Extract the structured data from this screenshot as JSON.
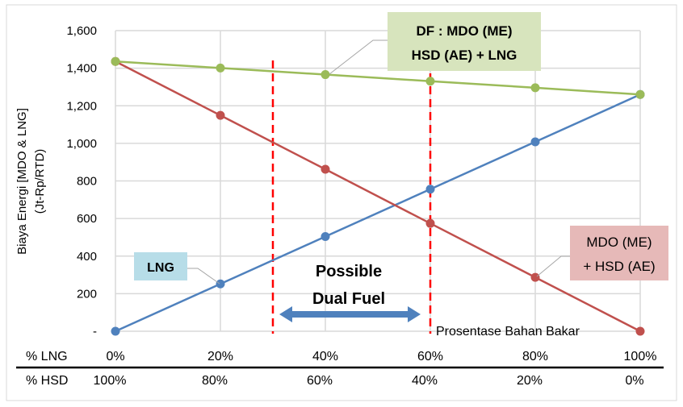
{
  "chart_data": {
    "type": "line",
    "title": "",
    "ylabel_line1": "Biaya Energi [MDO & LNG]",
    "ylabel_line2": "(Jt-Rp/RTD)",
    "xlabel": "Prosentase Bahan Bakar",
    "ylim": [
      0,
      1600
    ],
    "yticks": [
      0,
      200,
      400,
      600,
      800,
      1000,
      1200,
      1400,
      1600
    ],
    "ytick_labels": [
      "-",
      "200",
      "400",
      "600",
      "800",
      "1,000",
      "1,200",
      "1,400",
      "1,600"
    ],
    "x": [
      0,
      20,
      40,
      60,
      80,
      100
    ],
    "row1_label": "% LNG",
    "row1_ticks": [
      "0%",
      "20%",
      "40%",
      "60%",
      "80%",
      "100%"
    ],
    "row2_label": "% HSD",
    "row2_ticks": [
      "100%",
      "80%",
      "60%",
      "40%",
      "20%",
      "0%"
    ],
    "grid": true,
    "series": [
      {
        "name": "LNG",
        "color": "#4f81bd",
        "label_bg": "#b7dde8",
        "values": [
          0,
          252,
          504,
          756,
          1008,
          1260
        ]
      },
      {
        "name": "MDO (ME) + HSD (AE)",
        "label_lines": [
          "MDO (ME)",
          "+ HSD (AE)"
        ],
        "color": "#c0504d",
        "label_bg": "#e6b9b8",
        "values": [
          1436,
          1149,
          862,
          574,
          287,
          0
        ]
      },
      {
        "name": "DF : MDO (ME) HSD (AE) + LNG",
        "label_lines": [
          "DF : MDO (ME)",
          "HSD (AE) + LNG"
        ],
        "color": "#9bbb59",
        "label_bg": "#d7e4bd",
        "values": [
          1436,
          1401,
          1366,
          1331,
          1296,
          1260
        ]
      }
    ],
    "region": {
      "from": 30,
      "to": 60,
      "color": "#ff0000",
      "arrow_color": "#4f81bd",
      "label_lines": [
        "Possible",
        "Dual Fuel"
      ]
    }
  }
}
